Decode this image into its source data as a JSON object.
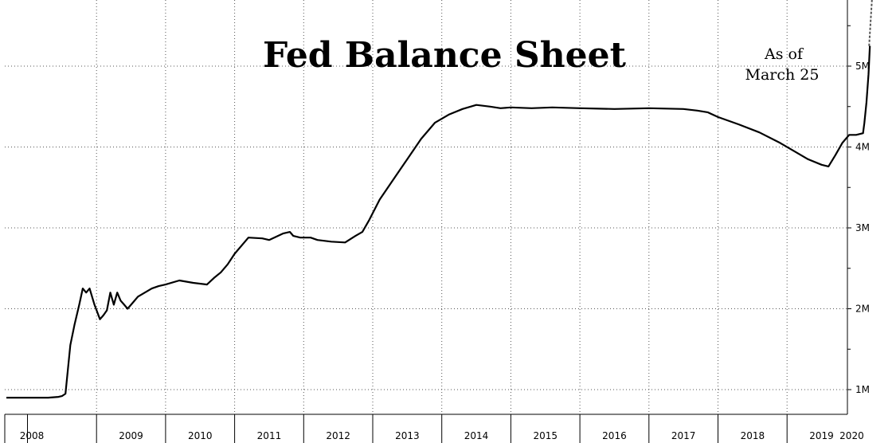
{
  "chart_data": {
    "type": "line",
    "title": "Fed Balance Sheet",
    "annotation": [
      "As of",
      "March 25"
    ],
    "xlabel": "",
    "ylabel": "",
    "xlim": [
      2008,
      2020.5
    ],
    "ylim": [
      0.7,
      5.7
    ],
    "y_ticks": [
      1,
      2,
      3,
      4,
      5
    ],
    "y_tick_labels": [
      "1M",
      "2M",
      "3M",
      "4M",
      "5M"
    ],
    "x_year_labels": [
      "2008",
      "2009",
      "2010",
      "2011",
      "2012",
      "2013",
      "2014",
      "2015",
      "2016",
      "2017",
      "2018",
      "2019",
      "2020"
    ],
    "grid": true,
    "y_axis_side": "right",
    "series": [
      {
        "x": [
          2008.0,
          2008.3,
          2008.45,
          2008.5,
          2008.55,
          2008.62,
          2008.68,
          2008.75,
          2008.8,
          2008.85,
          2008.9,
          2008.97,
          2009.05,
          2009.1,
          2009.15,
          2009.2,
          2009.25,
          2009.3,
          2009.35,
          2009.4,
          2009.45,
          2009.5,
          2009.55,
          2009.6,
          2009.7,
          2009.8,
          2009.9,
          2010.0,
          2010.2,
          2010.4,
          2010.6,
          2010.7,
          2010.8,
          2010.9,
          2011.0,
          2011.2,
          2011.4,
          2011.5,
          2011.7,
          2011.8,
          2011.85,
          2011.95,
          2012.1,
          2012.2,
          2012.4,
          2012.6,
          2012.75,
          2012.85,
          2012.95,
          2013.1,
          2013.3,
          2013.5,
          2013.7,
          2013.9,
          2014.1,
          2014.3,
          2014.5,
          2014.7,
          2014.85,
          2015.0,
          2015.3,
          2015.6,
          2016.0,
          2016.5,
          2017.0,
          2017.5,
          2017.7,
          2017.85,
          2018.0,
          2018.3,
          2018.6,
          2018.9,
          2019.1,
          2019.3,
          2019.5,
          2019.6,
          2019.7,
          2019.8,
          2019.9,
          2020.0,
          2020.1,
          2020.12,
          2020.15,
          2020.18,
          2020.2
        ],
        "y": [
          0.9,
          0.9,
          0.91,
          0.92,
          0.95,
          1.55,
          1.8,
          2.05,
          2.25,
          2.2,
          2.25,
          2.05,
          1.87,
          1.92,
          1.98,
          2.2,
          2.05,
          2.2,
          2.1,
          2.05,
          2.0,
          2.05,
          2.1,
          2.15,
          2.2,
          2.25,
          2.28,
          2.3,
          2.35,
          2.32,
          2.3,
          2.38,
          2.45,
          2.55,
          2.68,
          2.88,
          2.87,
          2.85,
          2.93,
          2.95,
          2.9,
          2.88,
          2.88,
          2.85,
          2.83,
          2.82,
          2.9,
          2.95,
          3.1,
          3.35,
          3.6,
          3.85,
          4.1,
          4.3,
          4.4,
          4.47,
          4.52,
          4.5,
          4.48,
          4.49,
          4.48,
          4.49,
          4.48,
          4.47,
          4.48,
          4.47,
          4.45,
          4.43,
          4.37,
          4.28,
          4.18,
          4.05,
          3.95,
          3.85,
          3.78,
          3.76,
          3.9,
          4.05,
          4.15,
          4.15,
          4.17,
          4.3,
          4.55,
          4.9,
          5.25
        ]
      }
    ]
  }
}
